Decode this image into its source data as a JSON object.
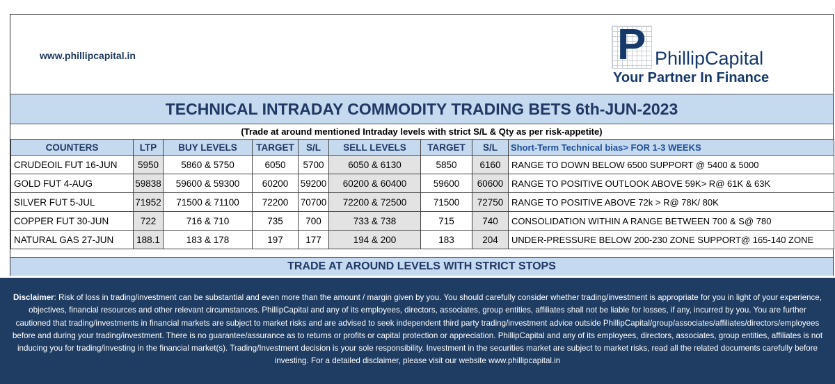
{
  "header": {
    "website": "www.phillipcapital.in",
    "logo_letter": "P",
    "logo_name": "PhillipCapital",
    "logo_tagline": "Your Partner In Finance"
  },
  "title": "TECHNICAL INTRADAY COMMODITY TRADING BETS 6th-JUN-2023",
  "subtitle": "(Trade at around mentioned Intraday levels with strict S/L & Qty as per risk-appetite)",
  "columns": [
    "COUNTERS",
    "LTP",
    "BUY LEVELS",
    "TARGET",
    "S/L",
    "SELL LEVELS",
    "TARGET",
    "S/L",
    "Short-Term Technical bias> FOR 1-3 WEEKS"
  ],
  "rows": [
    {
      "counter": "CRUDEOIL FUT 16-JUN",
      "ltp": "5950",
      "buy": "5860 & 5750",
      "buy_target": "6050",
      "buy_sl": "5700",
      "sell": "6050 & 6130",
      "sell_target": "5850",
      "sell_sl": "6160",
      "bias": "RANGE TO DOWN BELOW 6500 SUPPORT @ 5400 & 5000"
    },
    {
      "counter": "GOLD FUT 4-AUG",
      "ltp": "59838",
      "buy": "59600 & 59300",
      "buy_target": "60200",
      "buy_sl": "59200",
      "sell": "60200 & 60400",
      "sell_target": "59600",
      "sell_sl": "60600",
      "bias": "RANGE TO POSITIVE OUTLOOK ABOVE 59K> R@ 61K & 63K"
    },
    {
      "counter": "SILVER FUT 5-JUL",
      "ltp": "71952",
      "buy": "71500 & 71100",
      "buy_target": "72200",
      "buy_sl": "70700",
      "sell": "72200 & 72500",
      "sell_target": "71500",
      "sell_sl": "72750",
      "bias": "RANGE TO POSITIVE ABOVE 72k > R@ 78K/ 80K"
    },
    {
      "counter": "COPPER FUT 30-JUN",
      "ltp": "722",
      "buy": "716 & 710",
      "buy_target": "735",
      "buy_sl": "700",
      "sell": "733 & 738",
      "sell_target": "715",
      "sell_sl": "740",
      "bias": "CONSOLIDATION WITHIN A RANGE BETWEEN 700 & S@ 780"
    },
    {
      "counter": "NATURAL GAS 27-JUN",
      "ltp": "188.1",
      "buy": "183 & 178",
      "buy_target": "197",
      "buy_sl": "177",
      "sell": "194 & 200",
      "sell_target": "183",
      "sell_sl": "204",
      "bias": "UNDER-PRESSURE BELOW 200-230 ZONE SUPPORT@ 165-140 ZONE"
    }
  ],
  "footer_banner": "TRADE AT AROUND LEVELS WITH STRICT STOPS",
  "disclaimer": {
    "label": "Disclaimer",
    "text": ": Risk of loss in trading/investment can be substantial and even more than the amount / margin given by you. You should carefully consider whether trading/investment is appropriate for you in light of your experience, objectives, financial resources and other relevant circumstances. PhillipCapital and any of its employees, directors, associates, group entities, affiliates shall not be liable for losses, if any, incurred by you. You are further cautioned that trading/investments in financial markets are subject to market risks and are advised to seek independent third party trading/investment advice outside PhillipCapital/group/associates/affiliates/directors/employees before and during your trading/investment. There is no guarantee/assurance as to returns or profits or capital protection or appreciation. PhillipCapital and any of its employees, directors, associates, group entities, affiliates is not inducing you for trading/investing in the financial market(s). Trading/Investment decision is your sole responsibility. Investment in the securities market are subject to market risks, read all the related documents carefully before investing. For a detailed disclaimer, please visit our website www.phillipcapital.in"
  },
  "colors": {
    "header_blue": "#c5d9ef",
    "title_text": "#1f3864",
    "shaded_cell": "#e3e3e3",
    "disclaimer_bg": "#1f3d63"
  }
}
